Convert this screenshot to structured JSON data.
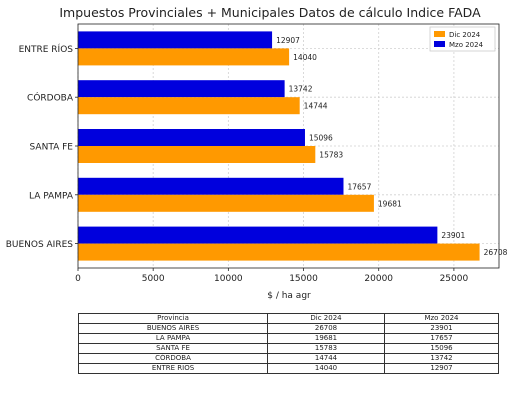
{
  "chart_data": {
    "type": "bar",
    "orientation": "horizontal",
    "title": "Impuestos Provinciales + Municipales Datos de cálculo Indice FADA",
    "xlabel": "$ / ha agr",
    "ylabel": "",
    "xlim": [
      0,
      28000
    ],
    "xticks": [
      0,
      5000,
      10000,
      15000,
      20000,
      25000
    ],
    "grid": true,
    "legend_position": "top-right",
    "categories": [
      "ENTRE RÍOS",
      "CÓRDOBA",
      "SANTA FE",
      "LA PAMPA",
      "BUENOS AIRES"
    ],
    "series": [
      {
        "name": "Dic 2024",
        "color": "#ff9900",
        "values": [
          14040,
          14744,
          15783,
          19681,
          26708
        ]
      },
      {
        "name": "Mzo 2024",
        "color": "#0000dd",
        "values": [
          12907,
          13742,
          15096,
          17657,
          23901
        ]
      }
    ]
  },
  "table": {
    "headers": [
      "Provincia",
      "Dic 2024",
      "Mzo 2024"
    ],
    "rows": [
      [
        "BUENOS AIRES",
        "26708",
        "23901"
      ],
      [
        "LA PAMPA",
        "19681",
        "17657"
      ],
      [
        "SANTA FE",
        "15783",
        "15096"
      ],
      [
        "CÓRDOBA",
        "14744",
        "13742"
      ],
      [
        "ENTRE RIOS",
        "14040",
        "12907"
      ]
    ]
  }
}
